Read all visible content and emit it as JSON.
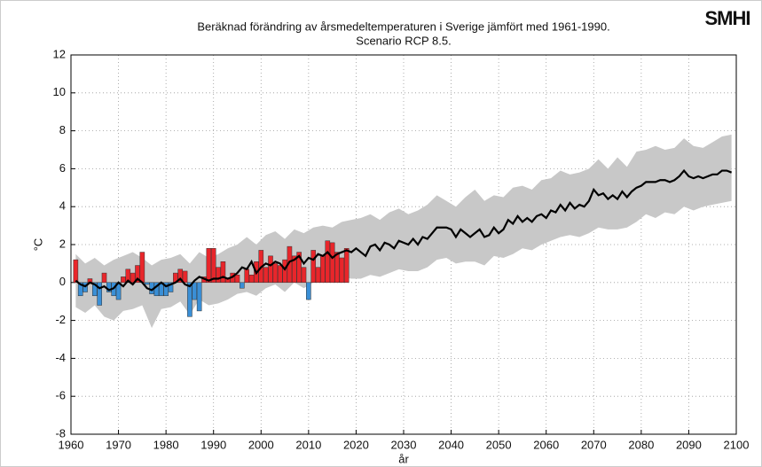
{
  "chart_data": {
    "type": "combo",
    "title": "Beräknad förändring av årsmedeltemperaturen i Sverige jämfört med 1961-1990.",
    "subtitle": "Scenario RCP 8.5.",
    "logo": "SMHI",
    "xlabel": "år",
    "ylabel": "°C",
    "xlim": [
      1960,
      2100
    ],
    "ylim": [
      -8,
      12
    ],
    "xticks": [
      1960,
      1970,
      1980,
      1990,
      2000,
      2010,
      2020,
      2030,
      2040,
      2050,
      2060,
      2070,
      2080,
      2090,
      2100
    ],
    "yticks": [
      -8,
      -6,
      -4,
      -2,
      0,
      2,
      4,
      6,
      8,
      10,
      12
    ],
    "grid": true,
    "series": [
      {
        "type": "area",
        "color": "#c8c8c8",
        "x": [
          1961,
          1963,
          1965,
          1967,
          1969,
          1971,
          1973,
          1975,
          1977,
          1979,
          1981,
          1983,
          1985,
          1987,
          1989,
          1991,
          1993,
          1995,
          1997,
          1999,
          2001,
          2003,
          2005,
          2007,
          2009,
          2011,
          2013,
          2015,
          2017,
          2019,
          2021,
          2023,
          2025,
          2027,
          2029,
          2031,
          2033,
          2035,
          2037,
          2039,
          2041,
          2043,
          2045,
          2047,
          2049,
          2051,
          2053,
          2055,
          2057,
          2059,
          2061,
          2063,
          2065,
          2067,
          2069,
          2071,
          2073,
          2075,
          2077,
          2079,
          2081,
          2083,
          2085,
          2087,
          2089,
          2091,
          2093,
          2095,
          2097,
          2099
        ],
        "upper": [
          1.5,
          1.0,
          1.3,
          0.9,
          1.2,
          1.4,
          1.6,
          1.3,
          0.9,
          1.2,
          1.3,
          1.5,
          1.0,
          1.6,
          1.3,
          1.5,
          1.8,
          2.0,
          2.4,
          2.0,
          2.5,
          2.7,
          2.3,
          2.8,
          2.6,
          2.9,
          3.0,
          2.9,
          3.2,
          3.3,
          3.4,
          3.6,
          3.3,
          3.7,
          3.9,
          3.6,
          3.8,
          4.1,
          4.6,
          4.3,
          4.0,
          4.5,
          4.9,
          4.3,
          4.6,
          4.5,
          5.0,
          5.1,
          4.9,
          5.4,
          5.5,
          5.9,
          5.7,
          5.8,
          6.0,
          6.5,
          6.0,
          6.6,
          6.1,
          6.9,
          7.0,
          7.2,
          7.0,
          7.1,
          7.6,
          7.2,
          7.1,
          7.4,
          7.7,
          7.8
        ],
        "lower": [
          -1.3,
          -1.6,
          -1.2,
          -1.8,
          -2.0,
          -1.5,
          -1.4,
          -1.2,
          -2.4,
          -1.4,
          -1.3,
          -1.0,
          -1.7,
          -0.9,
          -1.2,
          -1.1,
          -0.9,
          -0.6,
          -0.5,
          -0.7,
          -0.3,
          -0.1,
          -0.5,
          0.0,
          -0.3,
          0.0,
          0.2,
          0.1,
          0.3,
          0.2,
          0.2,
          0.4,
          0.3,
          0.5,
          0.7,
          0.6,
          0.6,
          0.8,
          1.2,
          1.3,
          1.0,
          1.1,
          1.1,
          0.9,
          1.4,
          1.3,
          1.5,
          1.8,
          1.7,
          2.0,
          2.2,
          2.4,
          2.5,
          2.4,
          2.6,
          2.9,
          2.8,
          2.8,
          2.9,
          3.2,
          3.6,
          3.4,
          3.7,
          3.6,
          4.0,
          3.8,
          4.0,
          4.1,
          4.2,
          4.3
        ]
      },
      {
        "type": "bar",
        "positive_color": "#e8262b",
        "negative_color": "#3a8fd6",
        "x": [
          1961,
          1962,
          1963,
          1964,
          1965,
          1966,
          1967,
          1968,
          1969,
          1970,
          1971,
          1972,
          1973,
          1974,
          1975,
          1976,
          1977,
          1978,
          1979,
          1980,
          1981,
          1982,
          1983,
          1984,
          1985,
          1986,
          1987,
          1988,
          1989,
          1990,
          1991,
          1992,
          1993,
          1994,
          1995,
          1996,
          1997,
          1998,
          1999,
          2000,
          2001,
          2002,
          2003,
          2004,
          2005,
          2006,
          2007,
          2008,
          2009,
          2010,
          2011,
          2012,
          2013,
          2014,
          2015,
          2016,
          2017,
          2018
        ],
        "values": [
          1.2,
          -0.7,
          -0.5,
          0.2,
          -0.7,
          -1.2,
          0.5,
          -0.5,
          -0.7,
          -0.9,
          0.3,
          0.7,
          0.5,
          0.9,
          1.6,
          -0.1,
          -0.6,
          -0.7,
          -0.7,
          -0.7,
          -0.5,
          0.5,
          0.7,
          0.6,
          -1.8,
          -0.9,
          -1.5,
          0.3,
          1.8,
          1.8,
          0.8,
          1.1,
          0.2,
          0.5,
          0.4,
          -0.3,
          0.7,
          0.4,
          1.1,
          1.7,
          0.8,
          1.4,
          1.0,
          0.9,
          1.2,
          1.9,
          1.4,
          1.6,
          0.8,
          -0.9,
          1.7,
          0.8,
          1.4,
          2.2,
          2.1,
          1.6,
          1.3,
          1.8
        ]
      },
      {
        "type": "line",
        "color": "#000000",
        "x": [
          1961,
          1962,
          1963,
          1964,
          1965,
          1966,
          1967,
          1968,
          1969,
          1970,
          1971,
          1972,
          1973,
          1974,
          1975,
          1976,
          1977,
          1978,
          1979,
          1980,
          1981,
          1982,
          1983,
          1984,
          1985,
          1986,
          1987,
          1988,
          1989,
          1990,
          1991,
          1992,
          1993,
          1994,
          1995,
          1996,
          1997,
          1998,
          1999,
          2000,
          2001,
          2002,
          2003,
          2004,
          2005,
          2006,
          2007,
          2008,
          2009,
          2010,
          2011,
          2012,
          2013,
          2014,
          2015,
          2016,
          2017,
          2018,
          2019,
          2020,
          2021,
          2022,
          2023,
          2024,
          2025,
          2026,
          2027,
          2028,
          2029,
          2030,
          2031,
          2032,
          2033,
          2034,
          2035,
          2036,
          2037,
          2038,
          2039,
          2040,
          2041,
          2042,
          2043,
          2044,
          2045,
          2046,
          2047,
          2048,
          2049,
          2050,
          2051,
          2052,
          2053,
          2054,
          2055,
          2056,
          2057,
          2058,
          2059,
          2060,
          2061,
          2062,
          2063,
          2064,
          2065,
          2066,
          2067,
          2068,
          2069,
          2070,
          2071,
          2072,
          2073,
          2074,
          2075,
          2076,
          2077,
          2078,
          2079,
          2080,
          2081,
          2082,
          2083,
          2084,
          2085,
          2086,
          2087,
          2088,
          2089,
          2090,
          2091,
          2092,
          2093,
          2094,
          2095,
          2096,
          2097,
          2098,
          2099
        ],
        "values": [
          0.1,
          -0.1,
          -0.2,
          0.0,
          -0.1,
          -0.3,
          -0.2,
          -0.4,
          -0.3,
          0.0,
          -0.2,
          0.1,
          -0.1,
          0.2,
          0.0,
          -0.3,
          -0.4,
          -0.2,
          0.0,
          -0.2,
          -0.1,
          0.0,
          0.2,
          -0.1,
          -0.2,
          0.1,
          0.3,
          0.2,
          0.1,
          0.2,
          0.2,
          0.3,
          0.2,
          0.3,
          0.5,
          0.8,
          0.7,
          1.1,
          0.5,
          0.8,
          1.0,
          0.9,
          1.1,
          1.0,
          0.7,
          1.1,
          1.2,
          1.4,
          1.0,
          1.3,
          1.2,
          1.5,
          1.4,
          1.6,
          1.3,
          1.5,
          1.6,
          1.7,
          1.6,
          1.8,
          1.6,
          1.4,
          1.9,
          2.0,
          1.7,
          2.1,
          2.0,
          1.8,
          2.2,
          2.1,
          2.0,
          2.3,
          2.0,
          2.4,
          2.3,
          2.6,
          2.9,
          2.9,
          2.9,
          2.8,
          2.4,
          2.8,
          2.6,
          2.4,
          2.6,
          2.8,
          2.4,
          2.5,
          2.9,
          2.6,
          2.8,
          3.3,
          3.1,
          3.5,
          3.2,
          3.4,
          3.2,
          3.5,
          3.6,
          3.4,
          3.8,
          3.7,
          4.1,
          3.8,
          4.2,
          3.9,
          4.1,
          4.0,
          4.3,
          4.9,
          4.6,
          4.7,
          4.4,
          4.6,
          4.4,
          4.8,
          4.5,
          4.8,
          5.0,
          5.1,
          5.3,
          5.3,
          5.3,
          5.4,
          5.4,
          5.3,
          5.4,
          5.6,
          5.9,
          5.6,
          5.5,
          5.6,
          5.5,
          5.6,
          5.7,
          5.7,
          5.9,
          5.9,
          5.8
        ]
      }
    ]
  }
}
